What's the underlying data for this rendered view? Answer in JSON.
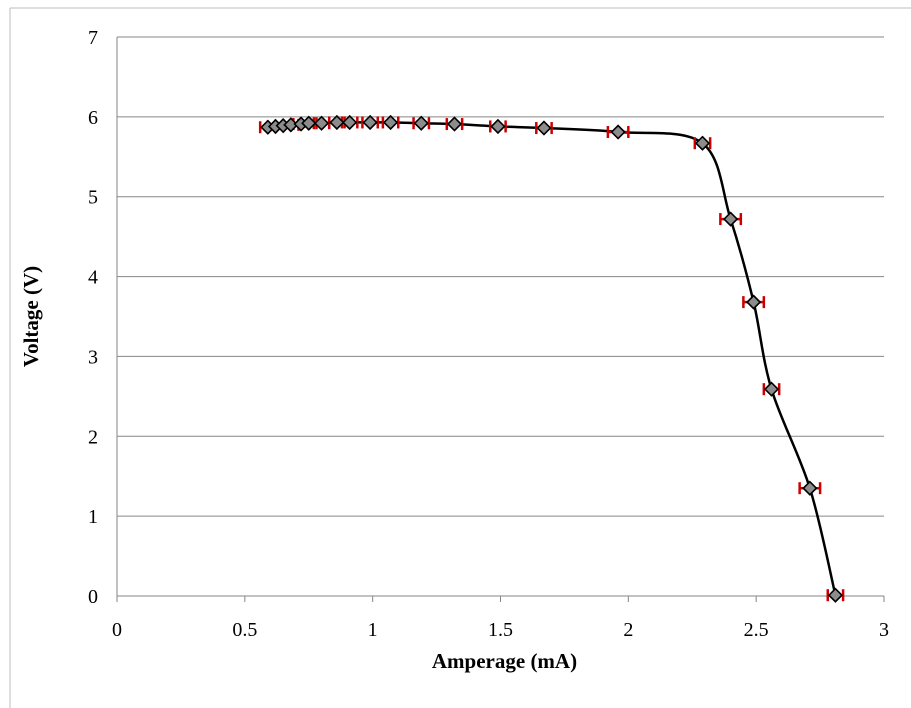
{
  "chart_data": {
    "type": "scatter",
    "title": "",
    "xlabel": "Amperage (mA)",
    "ylabel": "Voltage (V)",
    "xlim": [
      0,
      3
    ],
    "ylim": [
      0,
      7
    ],
    "x_ticks": [
      "0",
      "0.5",
      "1",
      "1.5",
      "2",
      "2.5",
      "3"
    ],
    "y_ticks": [
      "0",
      "1",
      "2",
      "3",
      "4",
      "5",
      "6",
      "7"
    ],
    "grid": "horizontal",
    "legend": "none",
    "smoothed_line": true,
    "error_bars": "horizontal",
    "error_bar_color": "#cc0000",
    "marker_color": "#8c8c8c",
    "line_color": "#000000",
    "series": [
      {
        "x": [
          0.59,
          0.62,
          0.65,
          0.68,
          0.72,
          0.75,
          0.8,
          0.86,
          0.91,
          0.99,
          1.07,
          1.19,
          1.32,
          1.49,
          1.67,
          1.96,
          2.29,
          2.4,
          2.49,
          2.56,
          2.71,
          2.81
        ],
        "y": [
          5.87,
          5.88,
          5.89,
          5.9,
          5.91,
          5.92,
          5.92,
          5.93,
          5.93,
          5.93,
          5.93,
          5.92,
          5.91,
          5.88,
          5.86,
          5.81,
          5.67,
          4.72,
          3.68,
          2.59,
          1.35,
          0.01
        ],
        "x_err": [
          0.03,
          0.03,
          0.03,
          0.03,
          0.03,
          0.03,
          0.03,
          0.03,
          0.03,
          0.03,
          0.03,
          0.03,
          0.03,
          0.03,
          0.03,
          0.04,
          0.03,
          0.04,
          0.04,
          0.03,
          0.04,
          0.03
        ]
      }
    ]
  }
}
